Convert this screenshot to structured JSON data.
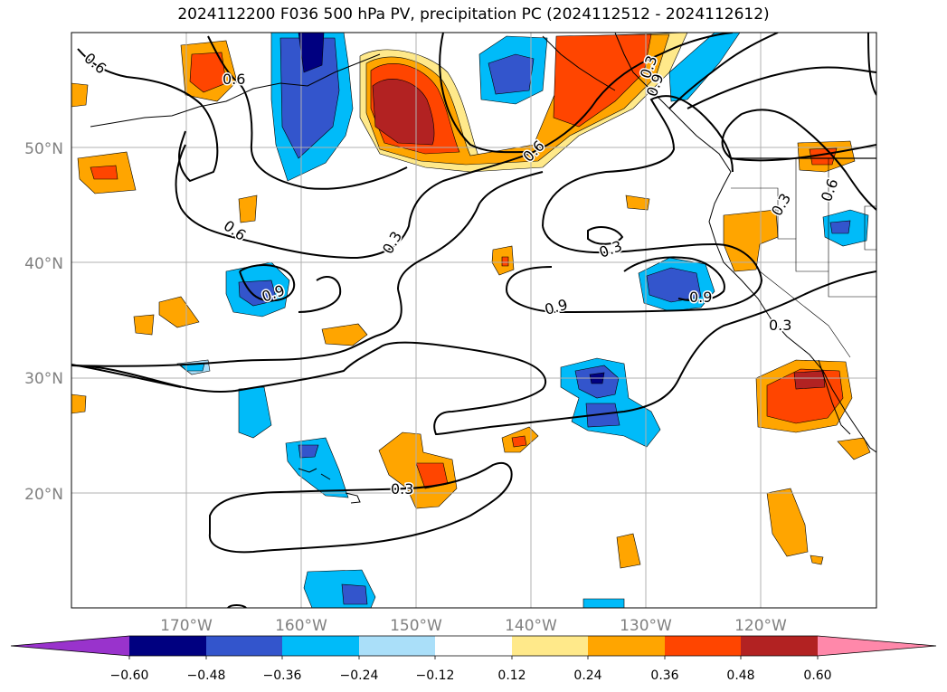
{
  "title": "2024112200 F036 500 hPa PV, precipitation PC (2024112512 - 2024112612)",
  "lat_labels": [
    "50°N",
    "40°N",
    "30°N",
    "20°N"
  ],
  "lon_labels": [
    "170°W",
    "160°W",
    "150°W",
    "140°W",
    "130°W",
    "120°W"
  ],
  "contour_labels": [
    "0.6",
    "0.6",
    "0.6",
    "0.6",
    "0.3",
    "0.3",
    "0.3",
    "0.3",
    "0.3",
    "0.9",
    "0.9",
    "0.9",
    "0.9",
    "0.3",
    "0.6"
  ],
  "colorbar": {
    "tick_labels": [
      "−0.60",
      "−0.48",
      "−0.36",
      "−0.24",
      "−0.12",
      "0.12",
      "0.24",
      "0.36",
      "0.48",
      "0.60"
    ],
    "colors": [
      "#9933cc",
      "#000080",
      "#3355cc",
      "#00bbf9",
      "#aadff9",
      "#ffffff",
      "#ffe98a",
      "#ffa500",
      "#ff4500",
      "#b22222",
      "#ff88aa"
    ]
  }
}
